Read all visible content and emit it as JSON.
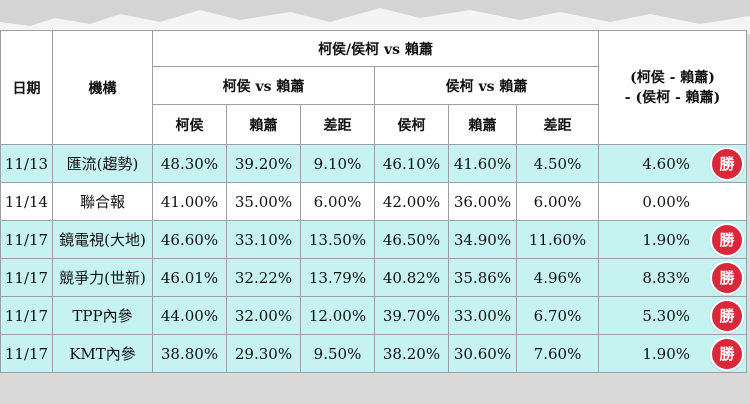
{
  "headers": {
    "date": "日期",
    "org": "機構",
    "group_main": "柯侯/侯柯 vs 賴蕭",
    "group_a": "柯侯 vs 賴蕭",
    "group_b": "侯柯 vs 賴蕭",
    "diff_line1": "(柯侯 - 賴蕭)",
    "diff_line2": "- (侯柯 - 賴蕭)",
    "a_col1": "柯侯",
    "a_col2": "賴蕭",
    "a_col3": "差距",
    "b_col1": "侯柯",
    "b_col2": "賴蕭",
    "b_col3": "差距"
  },
  "badge_label": "勝",
  "rows": [
    {
      "date": "11/13",
      "org": "匯流(趨勢)",
      "a1": "48.30%",
      "a2": "39.20%",
      "a3": "9.10%",
      "b1": "46.10%",
      "b2": "41.60%",
      "b3": "4.50%",
      "diff": "4.60%",
      "win": true
    },
    {
      "date": "11/14",
      "org": "聯合報",
      "a1": "41.00%",
      "a2": "35.00%",
      "a3": "6.00%",
      "b1": "42.00%",
      "b2": "36.00%",
      "b3": "6.00%",
      "diff": "0.00%",
      "win": false
    },
    {
      "date": "11/17",
      "org": "鏡電視(大地)",
      "a1": "46.60%",
      "a2": "33.10%",
      "a3": "13.50%",
      "b1": "46.50%",
      "b2": "34.90%",
      "b3": "11.60%",
      "diff": "1.90%",
      "win": true
    },
    {
      "date": "11/17",
      "org": "競爭力(世新)",
      "a1": "46.01%",
      "a2": "32.22%",
      "a3": "13.79%",
      "b1": "40.82%",
      "b2": "35.86%",
      "b3": "4.96%",
      "diff": "8.83%",
      "win": true
    },
    {
      "date": "11/17",
      "org": "TPP內參",
      "a1": "44.00%",
      "a2": "32.00%",
      "a3": "12.00%",
      "b1": "39.70%",
      "b2": "33.00%",
      "b3": "6.70%",
      "diff": "5.30%",
      "win": true
    },
    {
      "date": "11/17",
      "org": "KMT內參",
      "a1": "38.80%",
      "a2": "29.30%",
      "a3": "9.50%",
      "b1": "38.20%",
      "b2": "30.60%",
      "b3": "7.60%",
      "diff": "1.90%",
      "win": true
    }
  ]
}
